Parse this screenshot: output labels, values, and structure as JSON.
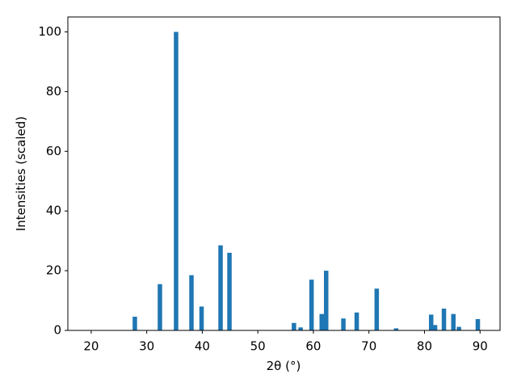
{
  "chart_data": {
    "type": "bar",
    "xlabel": "2θ (°)",
    "ylabel": "Intensities (scaled)",
    "x": [
      27.86,
      32.37,
      35.28,
      38.05,
      39.87,
      43.29,
      44.89,
      56.5,
      57.7,
      59.67,
      61.5,
      62.3,
      65.4,
      67.8,
      71.4,
      74.9,
      81.2,
      81.9,
      83.5,
      85.2,
      86.2,
      89.6
    ],
    "values": [
      4.6,
      15.5,
      100,
      18.5,
      8,
      28.5,
      26,
      2.5,
      1,
      17,
      5.5,
      20,
      4,
      6,
      14,
      0.7,
      5.3,
      1.8,
      7.3,
      5.5,
      1.2,
      3.8
    ],
    "color": "#1f77b4",
    "bar_width": 0.8,
    "xlim": [
      15.8,
      93.6
    ],
    "xticks": [
      20,
      30,
      40,
      50,
      60,
      70,
      80,
      90
    ],
    "ylim": [
      0,
      105
    ],
    "yticks": [
      0,
      20,
      40,
      60,
      80,
      100
    ]
  }
}
